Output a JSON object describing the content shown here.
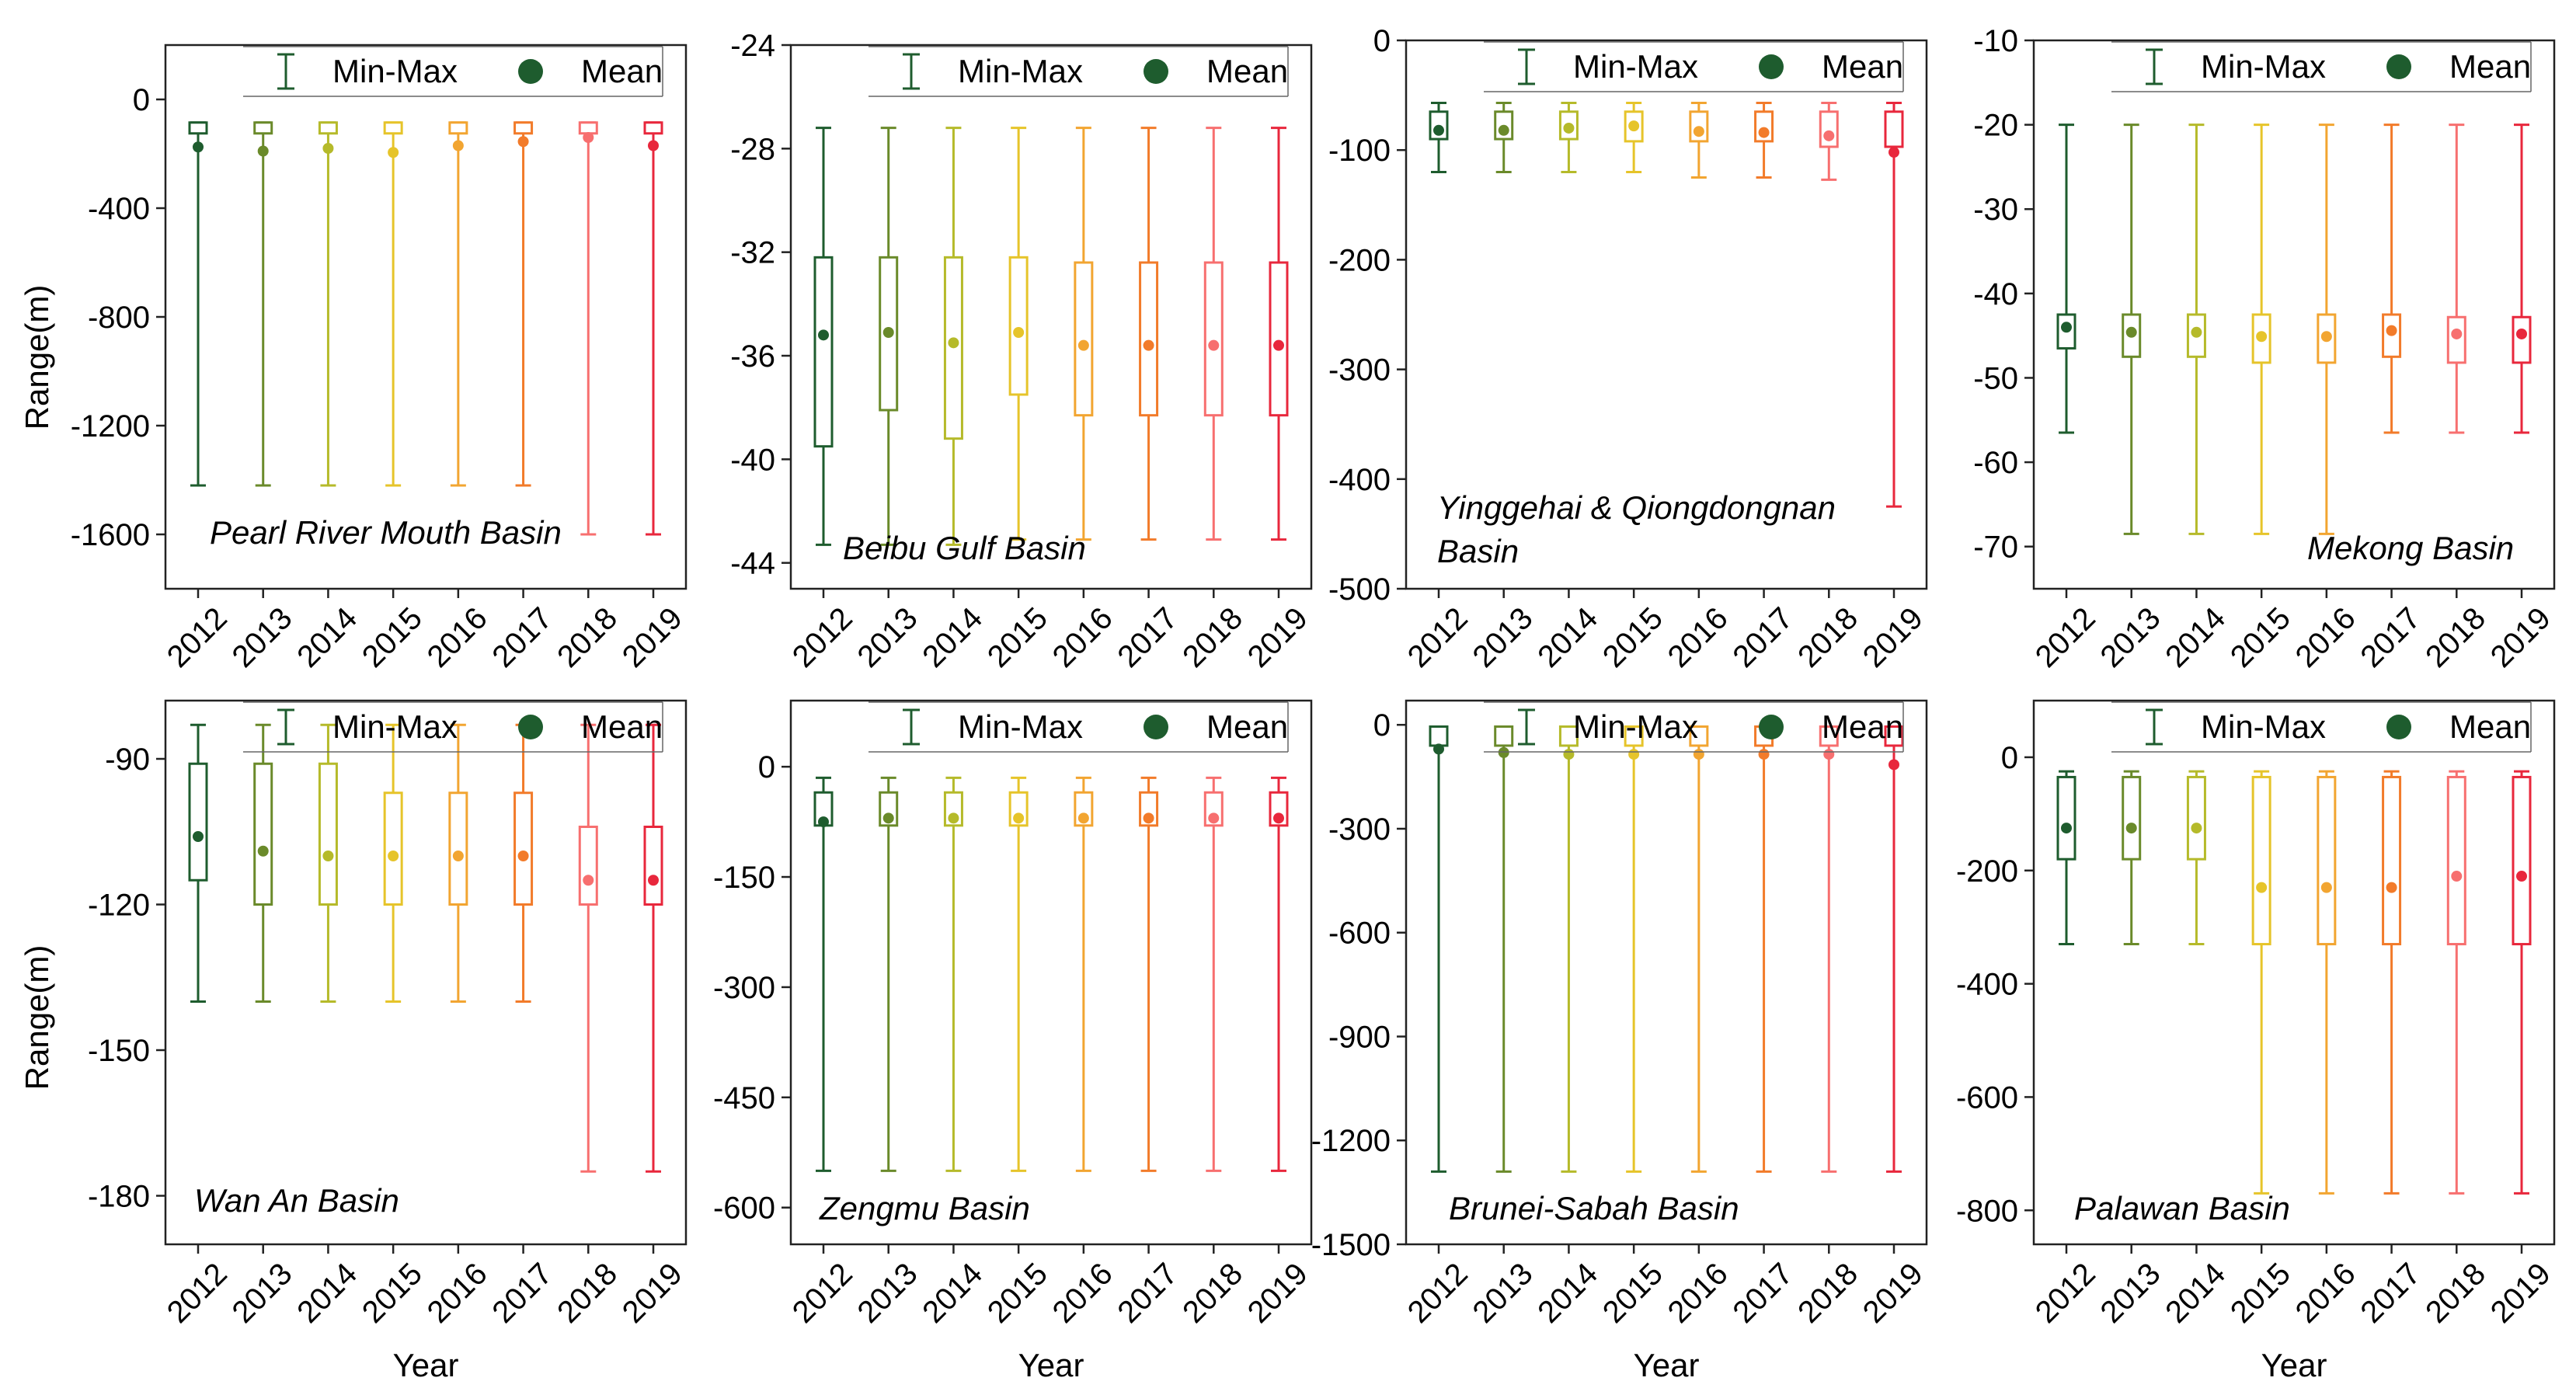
{
  "figure": {
    "x_axis_title": "Year",
    "y_axis_title": "Range(m)",
    "legend": {
      "minmax_label": "Min-Max",
      "mean_label": "Mean"
    },
    "series_colors": [
      "#1e5c2e",
      "#6a8a2a",
      "#b5ba2a",
      "#e6c42a",
      "#f2a531",
      "#f27b2a",
      "#f76f6f",
      "#e8273c"
    ]
  },
  "chart_data": [
    {
      "type": "box",
      "title": "Pearl River Mouth Basin",
      "xlabel": "",
      "ylabel": "Range(m)",
      "ylim": [
        -1800,
        200
      ],
      "yticks": [
        0,
        -400,
        -800,
        -1200,
        -1600
      ],
      "categories": [
        "2012",
        "2013",
        "2014",
        "2015",
        "2016",
        "2017",
        "2018",
        "2019"
      ],
      "min": [
        -1420,
        -1420,
        -1420,
        -1420,
        -1420,
        -1420,
        -1600,
        -1600
      ],
      "max": [
        -85,
        -85,
        -85,
        -85,
        -85,
        -85,
        -85,
        -85
      ],
      "q1": [
        -125,
        -125,
        -125,
        -125,
        -125,
        -125,
        -125,
        -125
      ],
      "q3": [
        -85,
        -85,
        -85,
        -85,
        -85,
        -85,
        -85,
        -85
      ],
      "mean": [
        -175,
        -190,
        -180,
        -195,
        -170,
        -155,
        -140,
        -170
      ]
    },
    {
      "type": "box",
      "title": "Beibu Gulf Basin",
      "xlabel": "",
      "ylabel": "",
      "ylim": [
        -45,
        -24
      ],
      "yticks": [
        -24,
        -28,
        -32,
        -36,
        -40,
        -44
      ],
      "categories": [
        "2012",
        "2013",
        "2014",
        "2015",
        "2016",
        "2017",
        "2018",
        "2019"
      ],
      "min": [
        -43.3,
        -43.3,
        -43.3,
        -43.1,
        -43.1,
        -43.1,
        -43.1,
        -43.1
      ],
      "max": [
        -27.2,
        -27.2,
        -27.2,
        -27.2,
        -27.2,
        -27.2,
        -27.2,
        -27.2
      ],
      "q1": [
        -39.5,
        -38.1,
        -39.2,
        -37.5,
        -38.3,
        -38.3,
        -38.3,
        -38.3
      ],
      "q3": [
        -32.2,
        -32.2,
        -32.2,
        -32.2,
        -32.4,
        -32.4,
        -32.4,
        -32.4
      ],
      "mean": [
        -35.2,
        -35.1,
        -35.5,
        -35.1,
        -35.6,
        -35.6,
        -35.6,
        -35.6
      ]
    },
    {
      "type": "box",
      "title": "Yinggehai & Qiongdongnan Basin",
      "xlabel": "",
      "ylabel": "",
      "ylim": [
        -500,
        0
      ],
      "yticks": [
        0,
        -100,
        -200,
        -300,
        -400,
        -500
      ],
      "categories": [
        "2012",
        "2013",
        "2014",
        "2015",
        "2016",
        "2017",
        "2018",
        "2019"
      ],
      "min": [
        -120,
        -120,
        -120,
        -120,
        -125,
        -125,
        -127,
        -425
      ],
      "max": [
        -57,
        -57,
        -57,
        -57,
        -57,
        -57,
        -57,
        -57
      ],
      "q1": [
        -90,
        -90,
        -90,
        -92,
        -92,
        -92,
        -97,
        -97
      ],
      "q3": [
        -65,
        -65,
        -65,
        -65,
        -65,
        -65,
        -65,
        -65
      ],
      "mean": [
        -82,
        -82,
        -80,
        -78,
        -83,
        -84,
        -87,
        -102
      ]
    },
    {
      "type": "box",
      "title": "Mekong Basin",
      "xlabel": "",
      "ylabel": "",
      "ylim": [
        -75,
        -10
      ],
      "yticks": [
        -10,
        -20,
        -30,
        -40,
        -50,
        -60,
        -70
      ],
      "categories": [
        "2012",
        "2013",
        "2014",
        "2015",
        "2016",
        "2017",
        "2018",
        "2019"
      ],
      "min": [
        -56.5,
        -68.5,
        -68.5,
        -68.5,
        -68.5,
        -56.5,
        -56.5,
        -56.5
      ],
      "max": [
        -20,
        -20,
        -20,
        -20,
        -20,
        -20,
        -20,
        -20
      ],
      "q1": [
        -46.5,
        -47.5,
        -47.5,
        -48.2,
        -48.2,
        -47.5,
        -48.2,
        -48.2
      ],
      "q3": [
        -42.5,
        -42.5,
        -42.5,
        -42.5,
        -42.5,
        -42.5,
        -42.8,
        -42.8
      ],
      "mean": [
        -44,
        -44.6,
        -44.6,
        -45.1,
        -45.1,
        -44.4,
        -44.8,
        -44.8
      ]
    },
    {
      "type": "box",
      "title": "Wan An Basin",
      "xlabel": "Year",
      "ylabel": "Range(m)",
      "ylim": [
        -190,
        -78
      ],
      "yticks": [
        -90,
        -120,
        -150,
        -180
      ],
      "categories": [
        "2012",
        "2013",
        "2014",
        "2015",
        "2016",
        "2017",
        "2018",
        "2019"
      ],
      "min": [
        -140,
        -140,
        -140,
        -140,
        -140,
        -140,
        -175,
        -175
      ],
      "max": [
        -83,
        -83,
        -83,
        -83,
        -83,
        -83,
        -83,
        -83
      ],
      "q1": [
        -115,
        -120,
        -120,
        -120,
        -120,
        -120,
        -120,
        -120
      ],
      "q3": [
        -91,
        -91,
        -91,
        -97,
        -97,
        -97,
        -104,
        -104
      ],
      "mean": [
        -106,
        -109,
        -110,
        -110,
        -110,
        -110,
        -115,
        -115
      ]
    },
    {
      "type": "box",
      "title": "Zengmu Basin",
      "xlabel": "Year",
      "ylabel": "",
      "ylim": [
        -650,
        90
      ],
      "yticks": [
        0,
        -150,
        -300,
        -450,
        -600
      ],
      "categories": [
        "2012",
        "2013",
        "2014",
        "2015",
        "2016",
        "2017",
        "2018",
        "2019"
      ],
      "min": [
        -550,
        -550,
        -550,
        -550,
        -550,
        -550,
        -550,
        -550
      ],
      "max": [
        -15,
        -15,
        -15,
        -15,
        -15,
        -15,
        -15,
        -15
      ],
      "q1": [
        -80,
        -80,
        -80,
        -80,
        -80,
        -80,
        -80,
        -80
      ],
      "q3": [
        -35,
        -35,
        -35,
        -35,
        -35,
        -35,
        -35,
        -35
      ],
      "mean": [
        -75,
        -70,
        -70,
        -70,
        -70,
        -70,
        -70,
        -70
      ]
    },
    {
      "type": "box",
      "title": "Brunei-Sabah Basin",
      "xlabel": "Year",
      "ylabel": "",
      "ylim": [
        -1500,
        70
      ],
      "yticks": [
        0,
        -300,
        -600,
        -900,
        -1200,
        -1500
      ],
      "categories": [
        "2012",
        "2013",
        "2014",
        "2015",
        "2016",
        "2017",
        "2018",
        "2019"
      ],
      "min": [
        -1290,
        -1290,
        -1290,
        -1290,
        -1290,
        -1290,
        -1290,
        -1290
      ],
      "max": [
        -5,
        -5,
        -5,
        -5,
        -5,
        -5,
        -5,
        -5
      ],
      "q1": [
        -60,
        -60,
        -60,
        -60,
        -60,
        -60,
        -60,
        -60
      ],
      "q3": [
        -5,
        -5,
        -5,
        -5,
        -5,
        -5,
        -5,
        -5
      ],
      "mean": [
        -70,
        -80,
        -85,
        -85,
        -85,
        -85,
        -85,
        -115
      ]
    },
    {
      "type": "box",
      "title": "Palawan Basin",
      "xlabel": "Year",
      "ylabel": "",
      "ylim": [
        -860,
        100
      ],
      "yticks": [
        0,
        -200,
        -400,
        -600,
        -800
      ],
      "categories": [
        "2012",
        "2013",
        "2014",
        "2015",
        "2016",
        "2017",
        "2018",
        "2019"
      ],
      "min": [
        -330,
        -330,
        -330,
        -770,
        -770,
        -770,
        -770,
        -770
      ],
      "max": [
        -25,
        -25,
        -25,
        -25,
        -25,
        -25,
        -25,
        -25
      ],
      "q1": [
        -180,
        -180,
        -180,
        -330,
        -330,
        -330,
        -330,
        -330
      ],
      "q3": [
        -35,
        -35,
        -35,
        -35,
        -35,
        -35,
        -35,
        -35
      ],
      "mean": [
        -125,
        -125,
        -125,
        -230,
        -230,
        -230,
        -210,
        -210
      ]
    }
  ]
}
